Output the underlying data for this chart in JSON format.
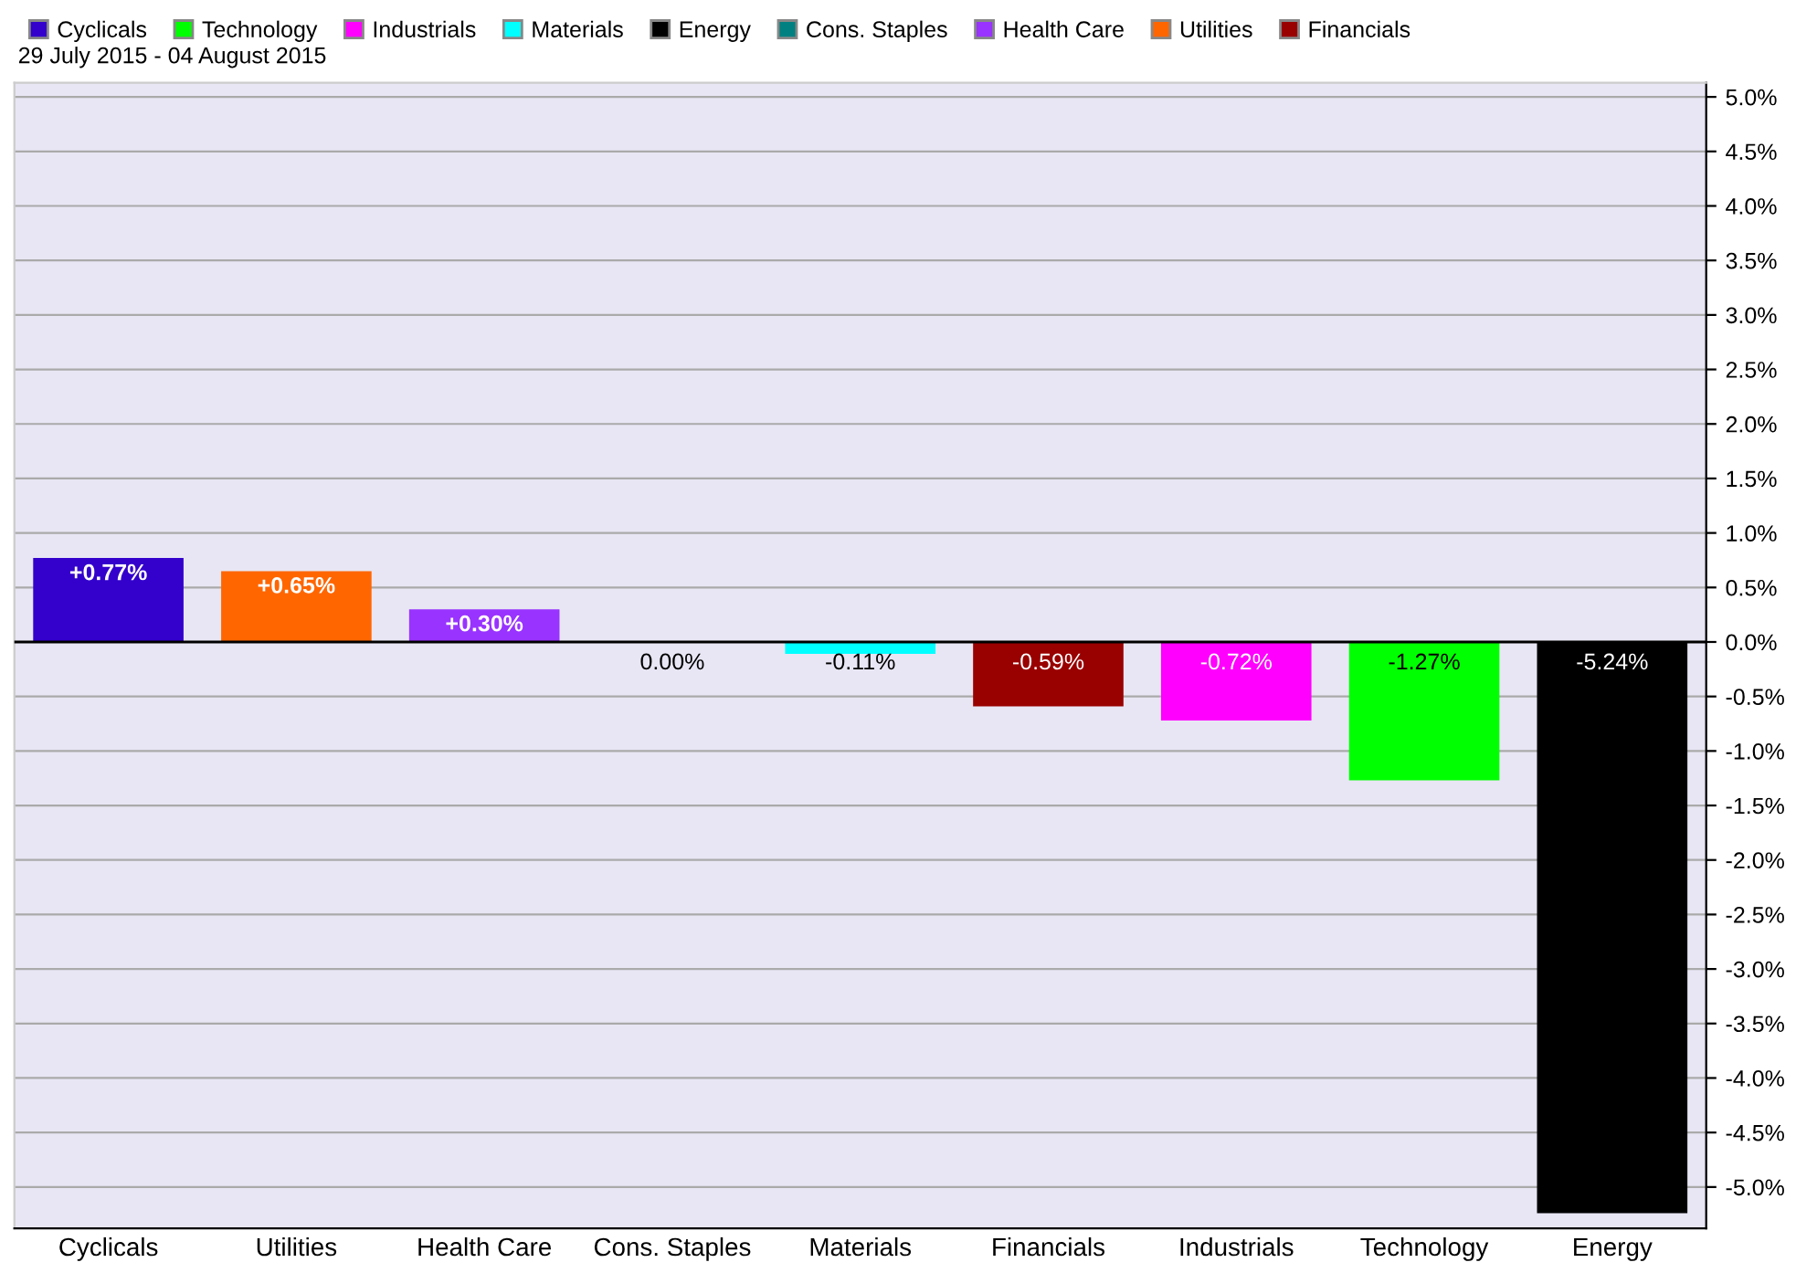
{
  "chart_data": {
    "type": "bar",
    "subtitle": "29 July 2015 - 04 August 2015",
    "categories": [
      "Cyclicals",
      "Utilities",
      "Health Care",
      "Cons. Staples",
      "Materials",
      "Financials",
      "Industrials",
      "Technology",
      "Energy"
    ],
    "stacked": true,
    "series": [
      {
        "name": "Cyclicals",
        "color": "#3300cc",
        "values": [
          0.77,
          null,
          null,
          null,
          null,
          null,
          null,
          null,
          null
        ],
        "value_labels": [
          "+0.77%",
          null,
          null,
          null,
          null,
          null,
          null,
          null,
          null
        ]
      },
      {
        "name": "Technology",
        "color": "#00ff00",
        "values": [
          null,
          null,
          null,
          null,
          null,
          null,
          null,
          -1.27,
          null
        ],
        "value_labels": [
          null,
          null,
          null,
          null,
          null,
          null,
          null,
          "-1.27%",
          null
        ]
      },
      {
        "name": "Industrials",
        "color": "#ff00ff",
        "values": [
          null,
          null,
          null,
          null,
          null,
          null,
          -0.72,
          null,
          null
        ],
        "value_labels": [
          null,
          null,
          null,
          null,
          null,
          null,
          "-0.72%",
          null,
          null
        ]
      },
      {
        "name": "Materials",
        "color": "#00ffff",
        "values": [
          null,
          null,
          null,
          null,
          -0.11,
          null,
          null,
          null,
          null
        ],
        "value_labels": [
          null,
          null,
          null,
          null,
          "-0.11%",
          null,
          null,
          null,
          null
        ]
      },
      {
        "name": "Energy",
        "color": "#000000",
        "values": [
          null,
          null,
          null,
          null,
          null,
          null,
          null,
          null,
          -5.24
        ],
        "value_labels": [
          null,
          null,
          null,
          null,
          null,
          null,
          null,
          null,
          "-5.24%"
        ]
      },
      {
        "name": "Cons. Staples",
        "color": "#008080",
        "values": [
          null,
          null,
          null,
          0.0,
          null,
          null,
          null,
          null,
          null
        ],
        "value_labels": [
          null,
          null,
          null,
          "0.00%",
          null,
          null,
          null,
          null,
          null
        ]
      },
      {
        "name": "Health Care",
        "color": "#9933ff",
        "values": [
          null,
          null,
          0.3,
          null,
          null,
          null,
          null,
          null,
          null
        ],
        "value_labels": [
          null,
          null,
          "+0.30%",
          null,
          null,
          null,
          null,
          null,
          null
        ]
      },
      {
        "name": "Utilities",
        "color": "#ff6600",
        "values": [
          null,
          0.65,
          null,
          null,
          null,
          null,
          null,
          null,
          null
        ],
        "value_labels": [
          null,
          "+0.65%",
          null,
          null,
          null,
          null,
          null,
          null,
          null
        ]
      },
      {
        "name": "Financials",
        "color": "#990000",
        "values": [
          null,
          null,
          null,
          null,
          null,
          -0.59,
          null,
          null,
          null
        ],
        "value_labels": [
          null,
          null,
          null,
          null,
          null,
          "-0.59%",
          null,
          null,
          null
        ]
      }
    ],
    "ylim": [
      -5.38,
      5.13
    ],
    "yticks": [
      {
        "value": 5.0,
        "label": "5.0%"
      },
      {
        "value": 4.5,
        "label": "4.5%"
      },
      {
        "value": 4.0,
        "label": "4.0%"
      },
      {
        "value": 3.5,
        "label": "3.5%"
      },
      {
        "value": 3.0,
        "label": "3.0%"
      },
      {
        "value": 2.5,
        "label": "2.5%"
      },
      {
        "value": 2.0,
        "label": "2.0%"
      },
      {
        "value": 1.5,
        "label": "1.5%"
      },
      {
        "value": 1.0,
        "label": "1.0%"
      },
      {
        "value": 0.5,
        "label": "0.5%"
      },
      {
        "value": 0.0,
        "label": "0.0%"
      },
      {
        "value": -0.5,
        "label": "-0.5%"
      },
      {
        "value": -1.0,
        "label": "-1.0%"
      },
      {
        "value": -1.5,
        "label": "-1.5%"
      },
      {
        "value": -2.0,
        "label": "-2.0%"
      },
      {
        "value": -2.5,
        "label": "-2.5%"
      },
      {
        "value": -3.0,
        "label": "-3.0%"
      },
      {
        "value": -3.5,
        "label": "-3.5%"
      },
      {
        "value": -4.0,
        "label": "-4.0%"
      },
      {
        "value": -4.5,
        "label": "-4.5%"
      },
      {
        "value": -5.0,
        "label": "-5.0%"
      }
    ],
    "grid": "y",
    "legend": "top"
  }
}
